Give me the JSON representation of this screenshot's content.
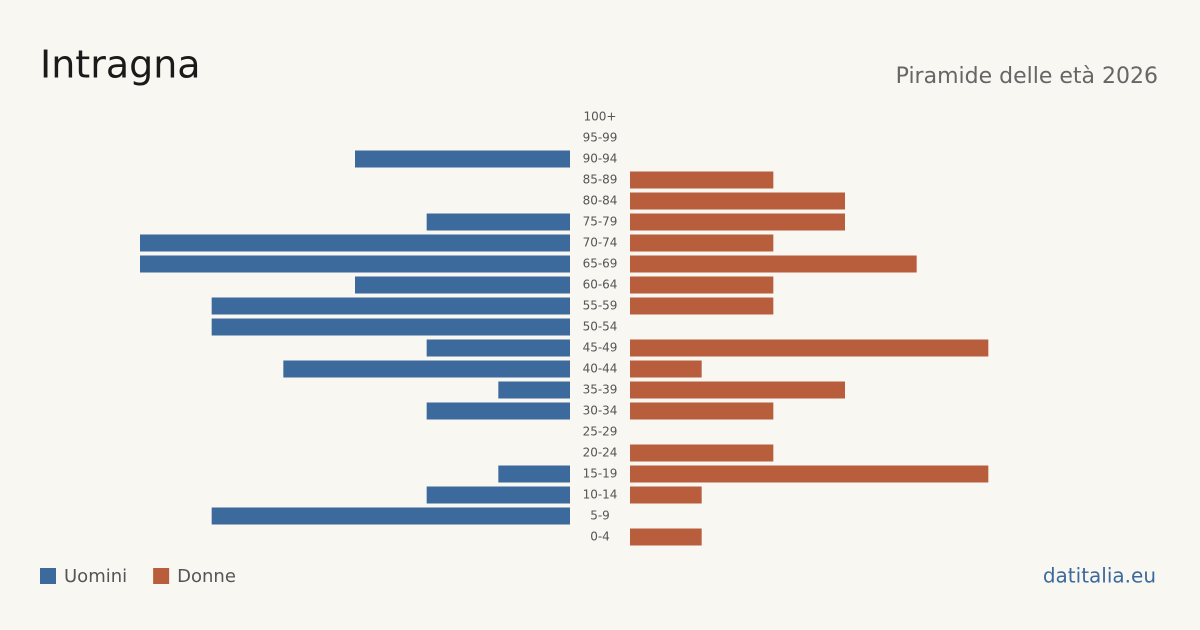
{
  "chart_data": {
    "type": "pyramid",
    "title": "Intragna",
    "subtitle": "Piramide delle età 2026",
    "source": "datitalia.eu",
    "categories": [
      "100+",
      "95-99",
      "90-94",
      "85-89",
      "80-84",
      "75-79",
      "70-74",
      "65-69",
      "60-64",
      "55-59",
      "50-54",
      "45-49",
      "40-44",
      "35-39",
      "30-34",
      "25-29",
      "20-24",
      "15-19",
      "10-14",
      "5-9",
      "0-4"
    ],
    "series": [
      {
        "name": "Uomini",
        "color": "#3d6a9c",
        "values": [
          0,
          0,
          3,
          0,
          0,
          2,
          6,
          6,
          3,
          5,
          5,
          2,
          4,
          1,
          2,
          0,
          0,
          1,
          2,
          5,
          0
        ]
      },
      {
        "name": "Donne",
        "color": "#b95e3c",
        "values": [
          0,
          0,
          0,
          2,
          3,
          3,
          2,
          4,
          2,
          2,
          0,
          5,
          1,
          3,
          2,
          0,
          2,
          5,
          1,
          0,
          1
        ]
      }
    ]
  }
}
